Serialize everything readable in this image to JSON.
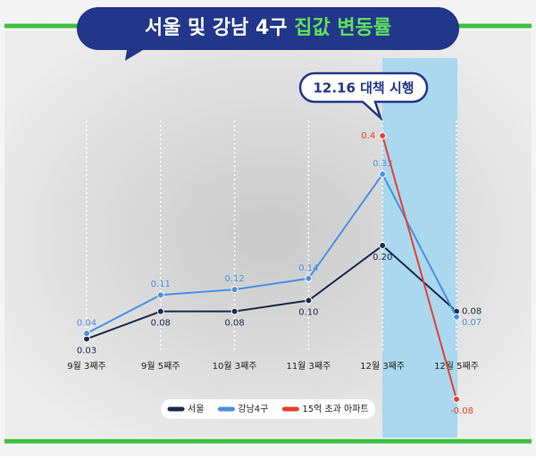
{
  "chart_data": {
    "type": "line",
    "title": {
      "main": "서울 및 강남 4구",
      "highlight": "집값 변동률"
    },
    "annotation": "12.16 대책 시행",
    "categories": [
      "9월 3째주",
      "9월 5째주",
      "10월 3째주",
      "11월 3째주",
      "12월 3째주",
      "12월 5째주"
    ],
    "series": [
      {
        "name": "서울",
        "color": "#1b2a4e",
        "values": [
          0.03,
          0.08,
          0.08,
          0.1,
          0.2,
          0.08
        ],
        "value_labels": [
          "0.03",
          "0.08",
          "0.08",
          "0.10",
          "0.20",
          "0.08"
        ]
      },
      {
        "name": "강남4구",
        "color": "#4a90e2",
        "values": [
          0.04,
          0.11,
          0.12,
          0.14,
          0.33,
          0.07
        ],
        "value_labels": [
          "0.04",
          "0.11",
          "0.12",
          "0.14",
          "0.33",
          "0.07"
        ]
      },
      {
        "name": "15억 초과 아파트",
        "color": "#e8402a",
        "values": [
          null,
          null,
          null,
          null,
          0.4,
          -0.08
        ],
        "value_labels": [
          null,
          null,
          null,
          null,
          "0.4",
          "-0.08"
        ]
      }
    ]
  }
}
